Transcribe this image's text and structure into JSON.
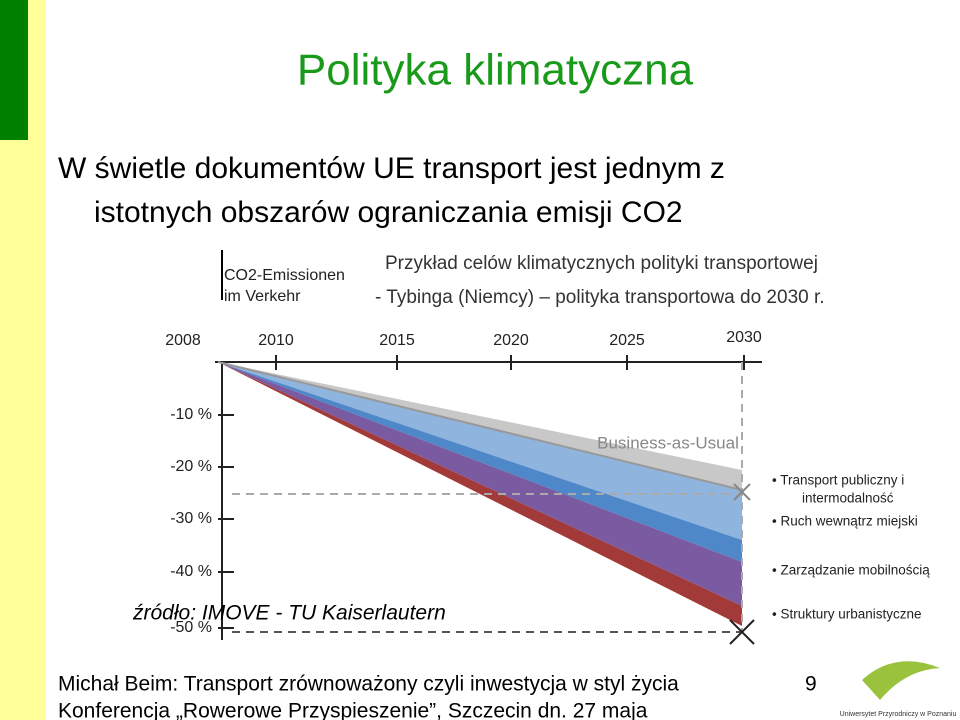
{
  "slide": {
    "title": "Polityka klimatyczna",
    "body": [
      "W świetle dokumentów UE transport jest jednym z",
      "istotnych obszarów ograniczania emisji CO2"
    ],
    "caption": [
      "Przykład celów klimatycznych polityki transportowej",
      "- Tybinga (Niemcy) – polityka transportowa do 2030 r."
    ],
    "figure": {
      "heading": [
        "CO2-Emissionen",
        "im Verkehr"
      ],
      "years": [
        "2008",
        "2010",
        "2015",
        "2020",
        "2025",
        "2030"
      ],
      "levels": [
        "-10 %",
        "-20 %",
        "-30 %",
        "-40 %",
        "-50 %"
      ],
      "baseline_label": "Business-as-Usual",
      "measures": [
        "Transport publiczny i intermodalność",
        "Ruch wewnątrz miejski",
        "Zarządzanie mobilnością",
        "Struktury urbanistyczne"
      ],
      "source": "źródło: IMOVE - TU Kaiserlautern"
    },
    "footer": [
      "Michał Beim: Transport zrównoważony czyli inwestycja w styl życia",
      "Konferencja „Rowerowe Przyspieszenie”, Szczecin dn. 27 maja"
    ],
    "page_number": "9",
    "logo_text": "Uniwersytet Przyrodniczy w Poznaniu"
  }
}
